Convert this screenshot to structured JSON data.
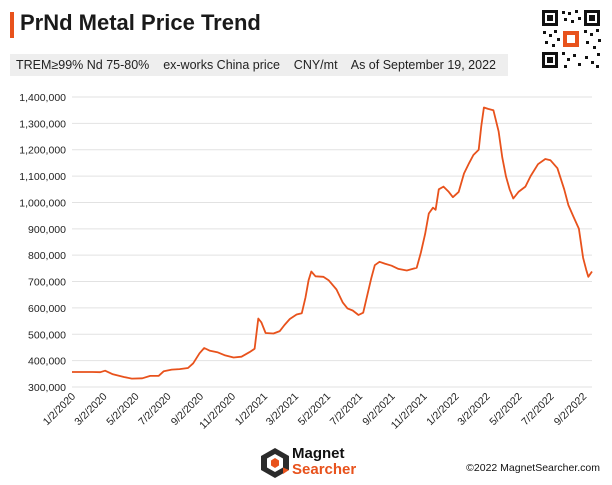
{
  "header": {
    "title": "PrNd Metal Price Trend",
    "subtitle": "TREM≥99% Nd 75-80%    ex-works China price    CNY/mt    As of September 19, 2022"
  },
  "footer": {
    "brand_line1": "Magnet",
    "brand_line2": "Searcher",
    "copyright": "©2022 MagnetSearcher.com"
  },
  "colors": {
    "accent": "#e8521c",
    "grid": "#e2e2e2",
    "text": "#222222"
  },
  "chart_data": {
    "type": "line",
    "title": "PrNd Metal Price Trend",
    "xlabel": "",
    "ylabel": "",
    "ylim": [
      300000,
      1400000
    ],
    "grid": true,
    "legend": "none",
    "y_ticks": [
      300000,
      400000,
      500000,
      600000,
      700000,
      800000,
      900000,
      1000000,
      1100000,
      1200000,
      1300000,
      1400000
    ],
    "y_tick_labels": [
      "300,000",
      "400,000",
      "500,000",
      "600,000",
      "700,000",
      "800,000",
      "900,000",
      "1,000,000",
      "1,100,000",
      "1,200,000",
      "1,300,000",
      "1,400,000"
    ],
    "x_range": [
      "2020-01-02",
      "2022-09-19"
    ],
    "x_ticks": [
      "2020-01-02",
      "2020-03-02",
      "2020-05-02",
      "2020-07-02",
      "2020-09-02",
      "2020-11-02",
      "2021-01-02",
      "2021-03-02",
      "2021-05-02",
      "2021-07-02",
      "2021-09-02",
      "2021-11-02",
      "2022-01-02",
      "2022-03-02",
      "2022-05-02",
      "2022-07-02",
      "2022-09-02"
    ],
    "x_tick_labels": [
      "1/2/2020",
      "3/2/2020",
      "5/2/2020",
      "7/2/2020",
      "9/2/2020",
      "11/2/2020",
      "1/2/2021",
      "3/2/2021",
      "5/2/2021",
      "7/2/2021",
      "9/2/2021",
      "11/2/2021",
      "1/2/2022",
      "3/2/2022",
      "5/2/2022",
      "7/2/2022",
      "9/2/2022"
    ],
    "series": [
      {
        "color": "#e8521c",
        "points": [
          [
            "2020-01-02",
            357000
          ],
          [
            "2020-02-10",
            357000
          ],
          [
            "2020-02-25",
            356000
          ],
          [
            "2020-03-05",
            362000
          ],
          [
            "2020-03-20",
            348000
          ],
          [
            "2020-04-10",
            338000
          ],
          [
            "2020-04-25",
            332000
          ],
          [
            "2020-05-15",
            333000
          ],
          [
            "2020-05-30",
            342000
          ],
          [
            "2020-06-15",
            342000
          ],
          [
            "2020-06-25",
            360000
          ],
          [
            "2020-07-10",
            366000
          ],
          [
            "2020-07-25",
            368000
          ],
          [
            "2020-08-10",
            372000
          ],
          [
            "2020-08-20",
            390000
          ],
          [
            "2020-09-01",
            428000
          ],
          [
            "2020-09-10",
            448000
          ],
          [
            "2020-09-20",
            438000
          ],
          [
            "2020-10-05",
            432000
          ],
          [
            "2020-10-20",
            420000
          ],
          [
            "2020-11-05",
            412000
          ],
          [
            "2020-11-20",
            415000
          ],
          [
            "2020-12-05",
            432000
          ],
          [
            "2020-12-15",
            445000
          ],
          [
            "2020-12-22",
            560000
          ],
          [
            "2020-12-28",
            545000
          ],
          [
            "2021-01-05",
            505000
          ],
          [
            "2021-01-20",
            503000
          ],
          [
            "2021-02-01",
            512000
          ],
          [
            "2021-02-10",
            535000
          ],
          [
            "2021-02-20",
            558000
          ],
          [
            "2021-03-05",
            575000
          ],
          [
            "2021-03-15",
            580000
          ],
          [
            "2021-03-22",
            640000
          ],
          [
            "2021-03-28",
            705000
          ],
          [
            "2021-04-02",
            738000
          ],
          [
            "2021-04-10",
            720000
          ],
          [
            "2021-04-25",
            718000
          ],
          [
            "2021-05-05",
            705000
          ],
          [
            "2021-05-20",
            670000
          ],
          [
            "2021-06-01",
            620000
          ],
          [
            "2021-06-10",
            598000
          ],
          [
            "2021-06-20",
            590000
          ],
          [
            "2021-07-01",
            573000
          ],
          [
            "2021-07-10",
            582000
          ],
          [
            "2021-07-18",
            650000
          ],
          [
            "2021-07-25",
            710000
          ],
          [
            "2021-08-01",
            762000
          ],
          [
            "2021-08-10",
            775000
          ],
          [
            "2021-08-20",
            768000
          ],
          [
            "2021-09-02",
            760000
          ],
          [
            "2021-09-15",
            748000
          ],
          [
            "2021-10-01",
            742000
          ],
          [
            "2021-10-20",
            752000
          ],
          [
            "2021-10-28",
            810000
          ],
          [
            "2021-11-05",
            880000
          ],
          [
            "2021-11-12",
            958000
          ],
          [
            "2021-11-20",
            980000
          ],
          [
            "2021-11-25",
            972000
          ],
          [
            "2021-12-01",
            1050000
          ],
          [
            "2021-12-10",
            1060000
          ],
          [
            "2021-12-20",
            1040000
          ],
          [
            "2021-12-28",
            1020000
          ],
          [
            "2022-01-08",
            1040000
          ],
          [
            "2022-01-18",
            1110000
          ],
          [
            "2022-01-28",
            1150000
          ],
          [
            "2022-02-05",
            1180000
          ],
          [
            "2022-02-15",
            1200000
          ],
          [
            "2022-02-20",
            1290000
          ],
          [
            "2022-02-25",
            1360000
          ],
          [
            "2022-03-05",
            1355000
          ],
          [
            "2022-03-15",
            1350000
          ],
          [
            "2022-03-25",
            1270000
          ],
          [
            "2022-04-01",
            1170000
          ],
          [
            "2022-04-08",
            1100000
          ],
          [
            "2022-04-15",
            1050000
          ],
          [
            "2022-04-22",
            1015000
          ],
          [
            "2022-05-02",
            1040000
          ],
          [
            "2022-05-15",
            1060000
          ],
          [
            "2022-05-25",
            1100000
          ],
          [
            "2022-06-08",
            1145000
          ],
          [
            "2022-06-22",
            1165000
          ],
          [
            "2022-07-02",
            1160000
          ],
          [
            "2022-07-15",
            1130000
          ],
          [
            "2022-07-28",
            1050000
          ],
          [
            "2022-08-05",
            990000
          ],
          [
            "2022-08-15",
            945000
          ],
          [
            "2022-08-25",
            900000
          ],
          [
            "2022-09-02",
            790000
          ],
          [
            "2022-09-08",
            745000
          ],
          [
            "2022-09-12",
            718000
          ],
          [
            "2022-09-19",
            738000
          ]
        ]
      }
    ]
  }
}
